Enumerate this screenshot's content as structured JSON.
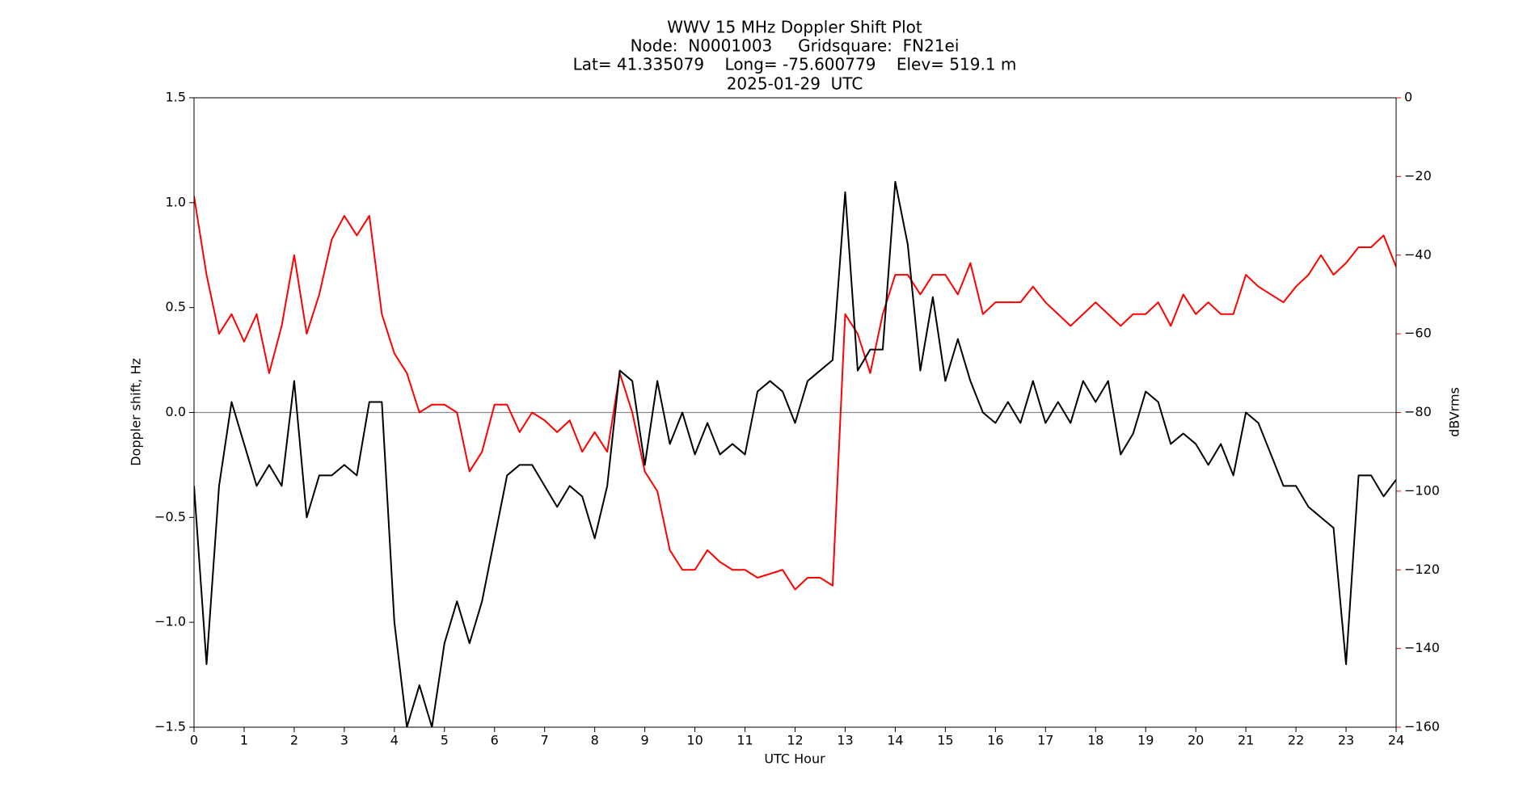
{
  "chart_data": {
    "type": "line",
    "title": "WWV 15 MHz Doppler Shift Plot",
    "subtitle": [
      "Node:  N0001003     Gridsquare:  FN21ei",
      "Lat= 41.335079    Long= -75.600779    Elev= 519.1 m",
      "2025-01-29  UTC"
    ],
    "x_label": "UTC Hour",
    "y_label": "Doppler shift, Hz",
    "y2_label": "dBVrms",
    "y2_color": "#ff0000",
    "x": [
      0,
      0.25,
      0.5,
      0.75,
      1,
      1.25,
      1.5,
      1.75,
      2,
      2.25,
      2.5,
      2.75,
      3,
      3.25,
      3.5,
      3.75,
      4,
      4.25,
      4.5,
      4.75,
      5,
      5.25,
      5.5,
      5.75,
      6,
      6.25,
      6.5,
      6.75,
      7,
      7.25,
      7.5,
      7.75,
      8,
      8.25,
      8.5,
      8.75,
      9,
      9.25,
      9.5,
      9.75,
      10,
      10.25,
      10.5,
      10.75,
      11,
      11.25,
      11.5,
      11.75,
      12,
      12.25,
      12.5,
      12.75,
      13,
      13.25,
      13.5,
      13.75,
      14,
      14.25,
      14.5,
      14.75,
      15,
      15.25,
      15.5,
      15.75,
      16,
      16.25,
      16.5,
      16.75,
      17,
      17.25,
      17.5,
      17.75,
      18,
      18.25,
      18.5,
      18.75,
      19,
      19.25,
      19.5,
      19.75,
      20,
      20.25,
      20.5,
      20.75,
      21,
      21.25,
      21.5,
      21.75,
      22,
      22.25,
      22.5,
      22.75,
      23,
      23.25,
      23.5,
      23.75,
      24
    ],
    "series": [
      {
        "name": "Doppler shift",
        "color": "#000000",
        "values": [
          -0.35,
          -1.2,
          -0.35,
          0.05,
          -0.15,
          -0.35,
          -0.25,
          -0.35,
          0.15,
          -0.5,
          -0.3,
          -0.3,
          -0.25,
          -0.3,
          0.05,
          0.05,
          -1.0,
          -1.5,
          -1.3,
          -1.5,
          -1.1,
          -0.9,
          -1.1,
          -0.9,
          -0.6,
          -0.3,
          -0.25,
          -0.25,
          -0.35,
          -0.45,
          -0.35,
          -0.4,
          -0.6,
          -0.35,
          0.2,
          0.15,
          -0.25,
          0.15,
          -0.15,
          0.0,
          -0.2,
          -0.05,
          -0.2,
          -0.15,
          -0.2,
          0.1,
          0.15,
          0.1,
          -0.05,
          0.15,
          0.2,
          0.25,
          1.05,
          0.2,
          0.3,
          0.3,
          1.1,
          0.8,
          0.2,
          0.55,
          0.15,
          0.35,
          0.15,
          0.0,
          -0.05,
          0.05,
          -0.05,
          0.15,
          -0.05,
          0.05,
          -0.05,
          0.15,
          0.05,
          0.15,
          -0.2,
          -0.1,
          0.1,
          0.05,
          -0.15,
          -0.1,
          -0.15,
          -0.25,
          -0.15,
          -0.3,
          0.0,
          -0.05,
          -0.2,
          -0.35,
          -0.35,
          -0.45,
          -0.5,
          -0.55,
          -1.2,
          -0.3,
          -0.3,
          -0.4,
          -0.32
        ]
      },
      {
        "name": "dBVrms",
        "color": "#ff0000",
        "axis": "y2",
        "values": [
          -25,
          -45,
          -60,
          -55,
          -62,
          -55,
          -70,
          -58,
          -40,
          -60,
          -50,
          -36,
          -30,
          -35,
          -30,
          -55,
          -65,
          -70,
          -80,
          -78,
          -78,
          -80,
          -95,
          -90,
          -78,
          -78,
          -85,
          -80,
          -82,
          -85,
          -82,
          -90,
          -85,
          -90,
          -70,
          -80,
          -95,
          -100,
          -115,
          -120,
          -120,
          -115,
          -118,
          -120,
          -120,
          -122,
          -121,
          -120,
          -125,
          -122,
          -122,
          -124,
          -55,
          -60,
          -70,
          -55,
          -45,
          -45,
          -50,
          -45,
          -45,
          -50,
          -42,
          -55,
          -52,
          -52,
          -52,
          -48,
          -52,
          -55,
          -58,
          -55,
          -52,
          -55,
          -58,
          -55,
          -55,
          -52,
          -58,
          -50,
          -55,
          -52,
          -55,
          -55,
          -45,
          -48,
          -50,
          -52,
          -48,
          -45,
          -40,
          -45,
          -42,
          -38,
          -38,
          -35,
          -43
        ]
      }
    ],
    "reference_line": 0,
    "xlim": [
      0,
      24
    ],
    "xticks": [
      0,
      1,
      2,
      3,
      4,
      5,
      6,
      7,
      8,
      9,
      10,
      11,
      12,
      13,
      14,
      15,
      16,
      17,
      18,
      19,
      20,
      21,
      22,
      23,
      24
    ],
    "ylim": [
      -1.5,
      1.5
    ],
    "yticks": [
      {
        "value": -1.5,
        "label": "−1.5"
      },
      {
        "value": -1.0,
        "label": "−1.0"
      },
      {
        "value": -0.5,
        "label": "−0.5"
      },
      {
        "value": 0.0,
        "label": "0.0"
      },
      0.5,
      {
        "value": 1.0,
        "label": "1.0"
      },
      1.5
    ],
    "y2lim": [
      -160,
      0
    ],
    "y2ticks": [
      {
        "value": -160,
        "label": "−160"
      },
      {
        "value": -140,
        "label": "−140"
      },
      {
        "value": -120,
        "label": "−120"
      },
      {
        "value": -100,
        "label": "−100"
      },
      {
        "value": -80,
        "label": "−80"
      },
      {
        "value": -60,
        "label": "−60"
      },
      {
        "value": -40,
        "label": "−40"
      },
      {
        "value": -20,
        "label": "−20"
      },
      0
    ]
  }
}
